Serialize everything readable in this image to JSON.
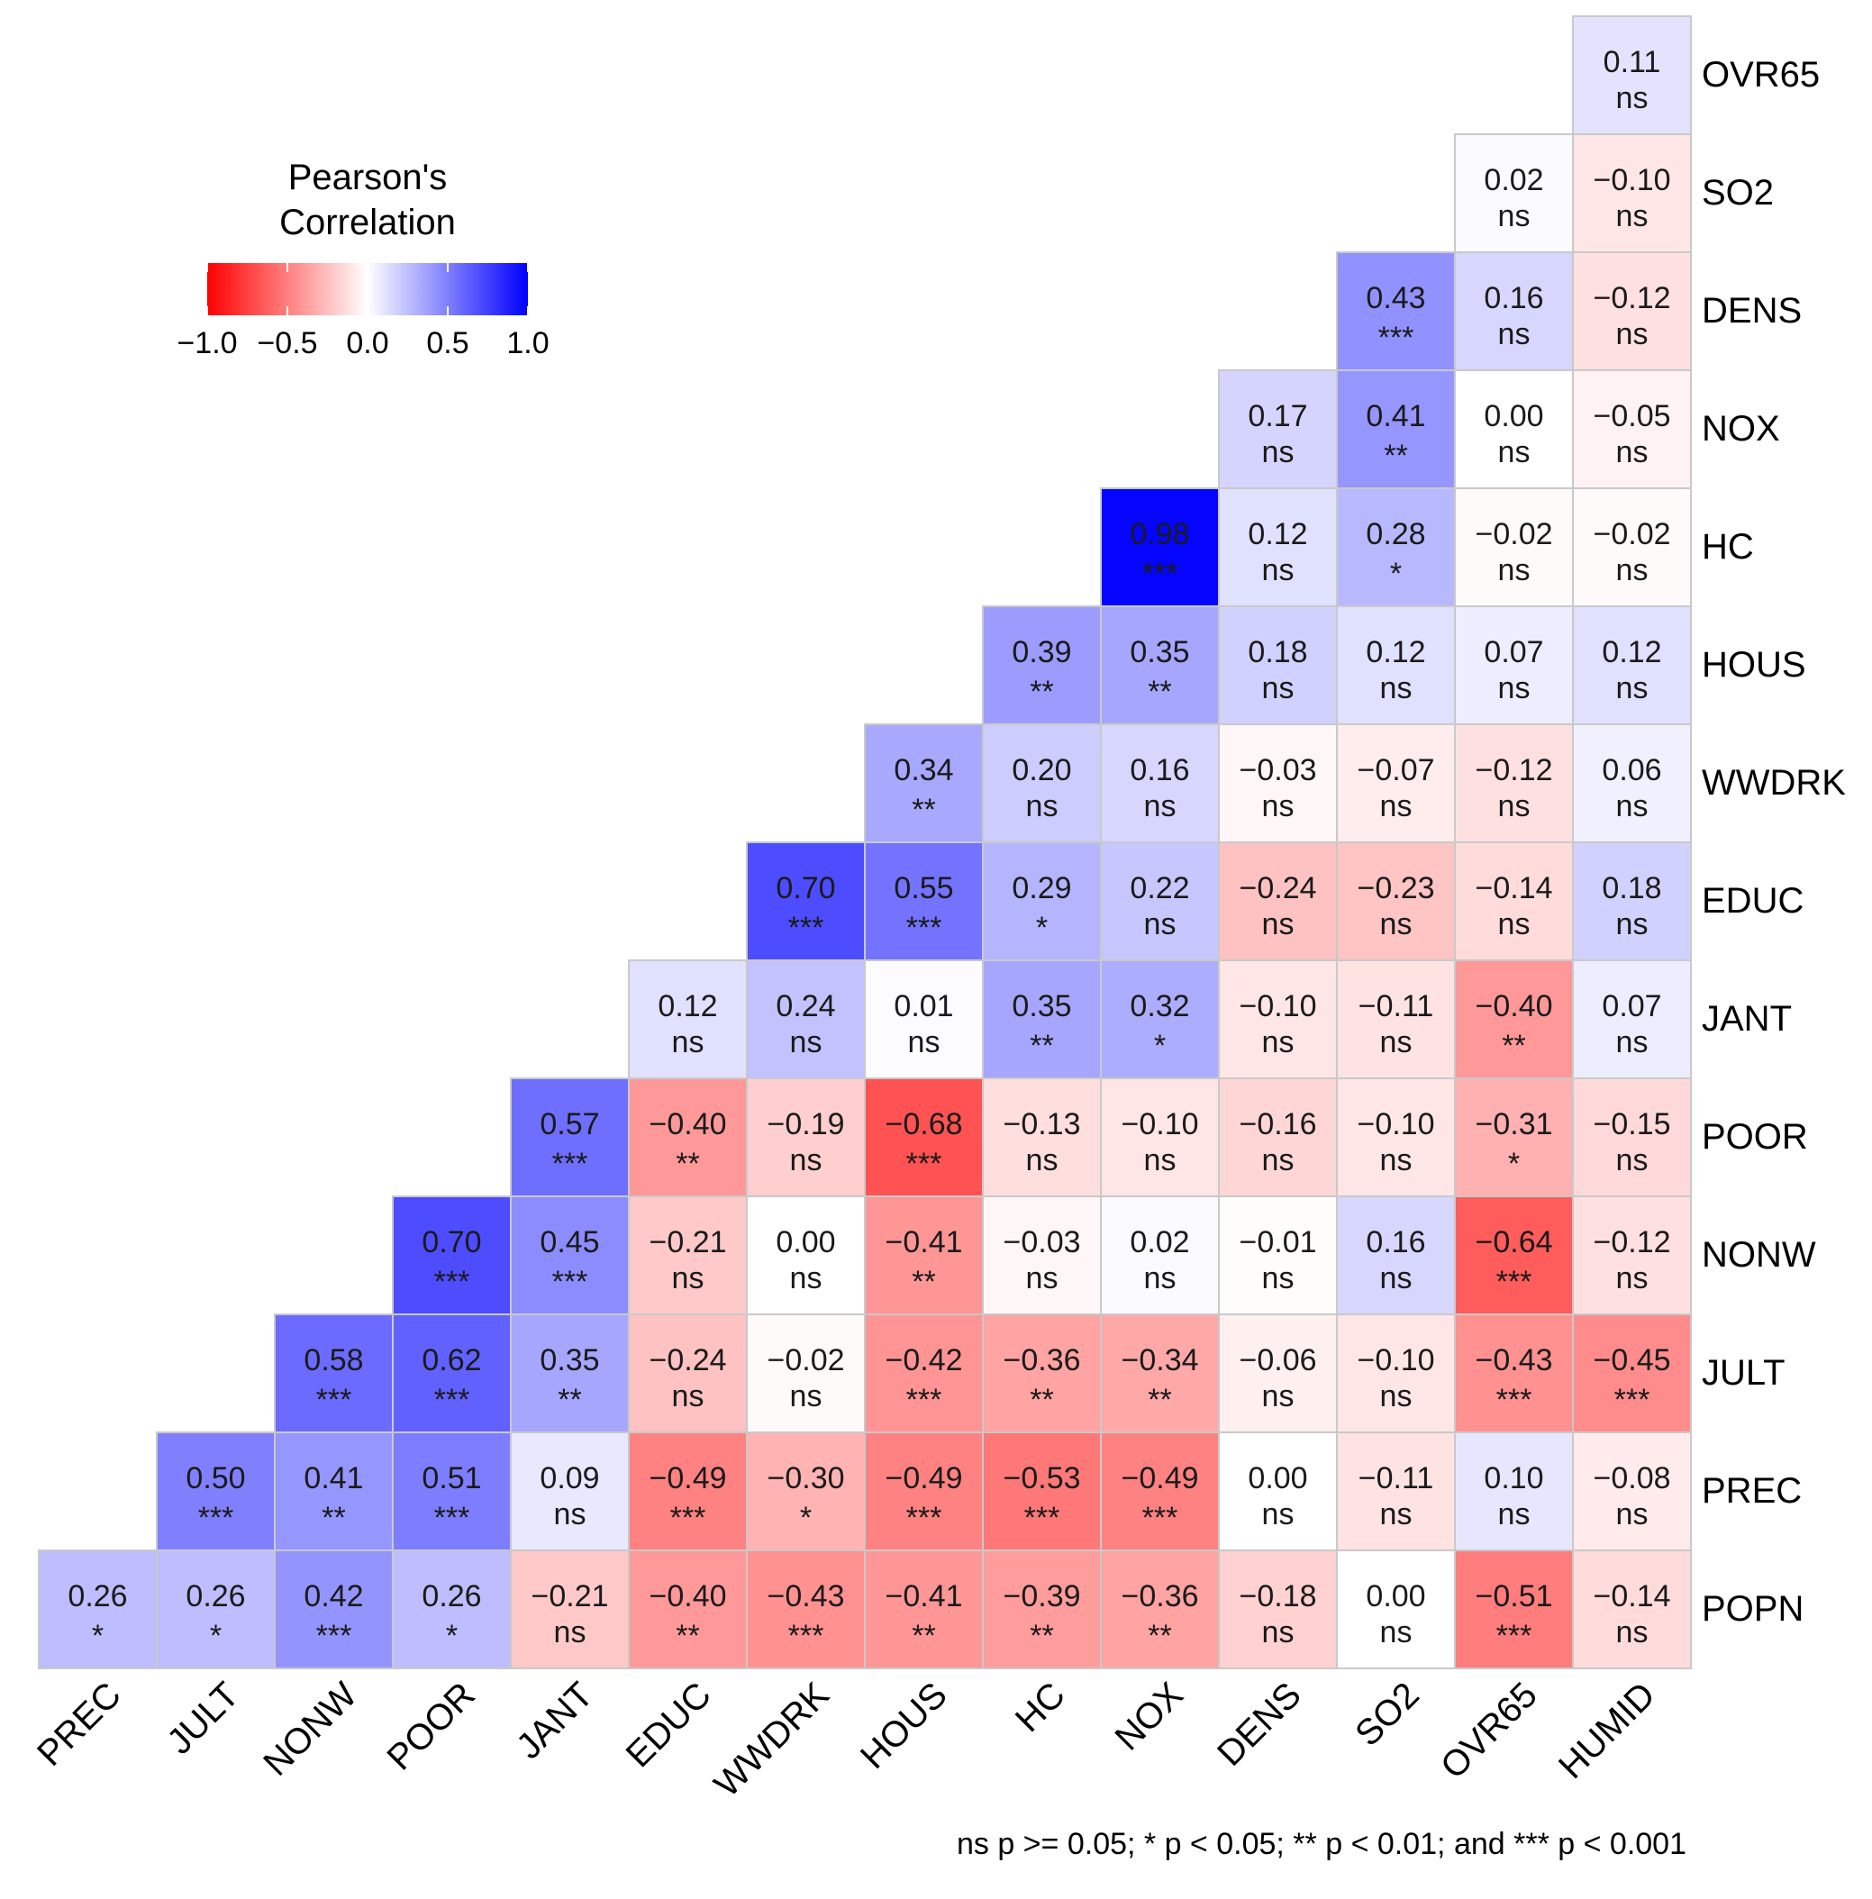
{
  "chart_data": {
    "type": "heatmap",
    "title": "",
    "variables": [
      "PREC",
      "JULT",
      "NONW",
      "POOR",
      "JANT",
      "EDUC",
      "WWDRK",
      "HOUS",
      "HC",
      "NOX",
      "DENS",
      "SO2",
      "OVR65",
      "HUMID"
    ],
    "x_labels": [
      "PREC",
      "JULT",
      "NONW",
      "POOR",
      "JANT",
      "EDUC",
      "WWDRK",
      "HOUS",
      "HC",
      "NOX",
      "DENS",
      "SO2",
      "OVR65",
      "HUMID"
    ],
    "y_labels": [
      "OVR65",
      "SO2",
      "DENS",
      "NOX",
      "HC",
      "HOUS",
      "WWDRK",
      "EDUC",
      "JANT",
      "POOR",
      "NONW",
      "JULT",
      "PREC",
      "POPN"
    ],
    "rows": [
      {
        "label": "OVR65",
        "values": [
          null,
          null,
          null,
          null,
          null,
          null,
          null,
          null,
          null,
          null,
          null,
          null,
          null,
          0.11
        ],
        "signif": [
          null,
          null,
          null,
          null,
          null,
          null,
          null,
          null,
          null,
          null,
          null,
          null,
          null,
          "ns"
        ]
      },
      {
        "label": "SO2",
        "values": [
          null,
          null,
          null,
          null,
          null,
          null,
          null,
          null,
          null,
          null,
          null,
          null,
          0.02,
          -0.1
        ],
        "signif": [
          null,
          null,
          null,
          null,
          null,
          null,
          null,
          null,
          null,
          null,
          null,
          null,
          "ns",
          "ns"
        ]
      },
      {
        "label": "DENS",
        "values": [
          null,
          null,
          null,
          null,
          null,
          null,
          null,
          null,
          null,
          null,
          null,
          0.43,
          0.16,
          -0.12
        ],
        "signif": [
          null,
          null,
          null,
          null,
          null,
          null,
          null,
          null,
          null,
          null,
          null,
          "***",
          "ns",
          "ns"
        ]
      },
      {
        "label": "NOX",
        "values": [
          null,
          null,
          null,
          null,
          null,
          null,
          null,
          null,
          null,
          null,
          0.17,
          0.41,
          0.0,
          -0.05
        ],
        "signif": [
          null,
          null,
          null,
          null,
          null,
          null,
          null,
          null,
          null,
          null,
          "ns",
          "**",
          "ns",
          "ns"
        ]
      },
      {
        "label": "HC",
        "values": [
          null,
          null,
          null,
          null,
          null,
          null,
          null,
          null,
          null,
          0.98,
          0.12,
          0.28,
          -0.02,
          -0.02
        ],
        "signif": [
          null,
          null,
          null,
          null,
          null,
          null,
          null,
          null,
          null,
          "***",
          "ns",
          "*",
          "ns",
          "ns"
        ]
      },
      {
        "label": "HOUS",
        "values": [
          null,
          null,
          null,
          null,
          null,
          null,
          null,
          null,
          0.39,
          0.35,
          0.18,
          0.12,
          0.07,
          0.12
        ],
        "signif": [
          null,
          null,
          null,
          null,
          null,
          null,
          null,
          null,
          "**",
          "**",
          "ns",
          "ns",
          "ns",
          "ns"
        ]
      },
      {
        "label": "WWDRK",
        "values": [
          null,
          null,
          null,
          null,
          null,
          null,
          null,
          0.34,
          0.2,
          0.16,
          -0.03,
          -0.07,
          -0.12,
          0.06
        ],
        "signif": [
          null,
          null,
          null,
          null,
          null,
          null,
          null,
          "**",
          "ns",
          "ns",
          "ns",
          "ns",
          "ns",
          "ns"
        ]
      },
      {
        "label": "EDUC",
        "values": [
          null,
          null,
          null,
          null,
          null,
          null,
          0.7,
          0.55,
          0.29,
          0.22,
          -0.24,
          -0.23,
          -0.14,
          0.18
        ],
        "signif": [
          null,
          null,
          null,
          null,
          null,
          null,
          "***",
          "***",
          "*",
          "ns",
          "ns",
          "ns",
          "ns",
          "ns"
        ]
      },
      {
        "label": "JANT",
        "values": [
          null,
          null,
          null,
          null,
          null,
          0.12,
          0.24,
          0.01,
          0.35,
          0.32,
          -0.1,
          -0.11,
          -0.4,
          0.07
        ],
        "signif": [
          null,
          null,
          null,
          null,
          null,
          "ns",
          "ns",
          "ns",
          "**",
          "*",
          "ns",
          "ns",
          "**",
          "ns"
        ]
      },
      {
        "label": "POOR",
        "values": [
          null,
          null,
          null,
          null,
          0.57,
          -0.4,
          -0.19,
          -0.68,
          -0.13,
          -0.1,
          -0.16,
          -0.1,
          -0.31,
          -0.15
        ],
        "signif": [
          null,
          null,
          null,
          null,
          "***",
          "**",
          "ns",
          "***",
          "ns",
          "ns",
          "ns",
          "ns",
          "*",
          "ns"
        ]
      },
      {
        "label": "NONW",
        "values": [
          null,
          null,
          null,
          0.7,
          0.45,
          -0.21,
          0.0,
          -0.41,
          -0.03,
          0.02,
          -0.01,
          0.16,
          -0.64,
          -0.12
        ],
        "signif": [
          null,
          null,
          null,
          "***",
          "***",
          "ns",
          "ns",
          "**",
          "ns",
          "ns",
          "ns",
          "ns",
          "***",
          "ns"
        ]
      },
      {
        "label": "JULT",
        "values": [
          null,
          null,
          0.58,
          0.62,
          0.35,
          -0.24,
          -0.02,
          -0.42,
          -0.36,
          -0.34,
          -0.06,
          -0.1,
          -0.43,
          -0.45
        ],
        "signif": [
          null,
          null,
          "***",
          "***",
          "**",
          "ns",
          "ns",
          "***",
          "**",
          "**",
          "ns",
          "ns",
          "***",
          "***"
        ]
      },
      {
        "label": "PREC",
        "values": [
          null,
          0.5,
          0.41,
          0.51,
          0.09,
          -0.49,
          -0.3,
          -0.49,
          -0.53,
          -0.49,
          0.0,
          -0.11,
          0.1,
          -0.08
        ],
        "signif": [
          null,
          "***",
          "**",
          "***",
          "ns",
          "***",
          "*",
          "***",
          "***",
          "***",
          "ns",
          "ns",
          "ns",
          "ns"
        ]
      },
      {
        "label": "POPN",
        "values": [
          0.26,
          0.26,
          0.42,
          0.26,
          -0.21,
          -0.4,
          -0.43,
          -0.41,
          -0.39,
          -0.36,
          -0.18,
          0.0,
          -0.51,
          -0.14
        ],
        "signif": [
          "*",
          "*",
          "***",
          "*",
          "ns",
          "**",
          "***",
          "**",
          "**",
          "**",
          "ns",
          "ns",
          "***",
          "ns"
        ]
      }
    ],
    "color_scale": {
      "low": "#ff0000",
      "mid": "#ffffff",
      "high": "#0000ff",
      "limits": [
        -1.0,
        1.0
      ]
    },
    "legend": {
      "title_line1": "Pearson's",
      "title_line2": "Correlation",
      "ticks": [
        "−1.0",
        "−0.5",
        "0.0",
        "0.5",
        "1.0"
      ],
      "tick_values": [
        -1.0,
        -0.5,
        0.0,
        0.5,
        1.0
      ],
      "placement": "top-left"
    },
    "caption": "ns p >= 0.05; * p < 0.05; ** p < 0.01; and *** p < 0.001"
  }
}
